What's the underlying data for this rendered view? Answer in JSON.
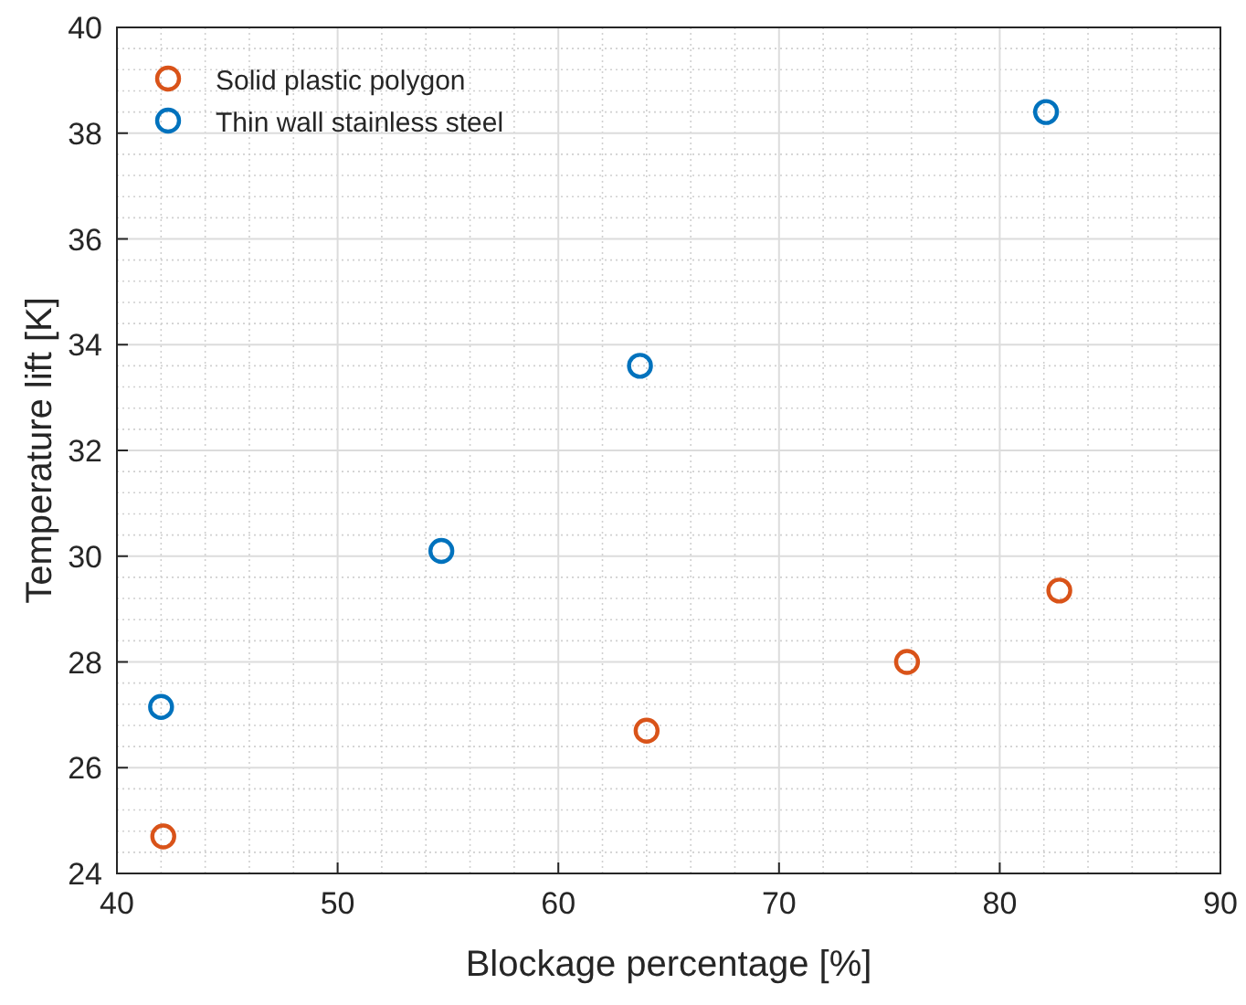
{
  "chart_data": {
    "type": "scatter",
    "xlabel": "Blockage percentage [%]",
    "ylabel": "Temperature lift [K]",
    "xlim": [
      40,
      90
    ],
    "xticks": [
      40,
      50,
      60,
      70,
      80,
      90
    ],
    "ylim": [
      24,
      40
    ],
    "yticks": [
      24,
      26,
      28,
      30,
      32,
      34,
      36,
      38,
      40
    ],
    "grid": true,
    "legend": "top left",
    "marker": "circle",
    "series": [
      {
        "name": "Solid plastic polygon",
        "color": "#d95319",
        "x": [
          42.1,
          64.0,
          75.8,
          82.7
        ],
        "values": [
          24.7,
          26.7,
          28.0,
          29.35
        ]
      },
      {
        "name": "Thin wall stainless steel",
        "color": "#0072bd",
        "x": [
          42.0,
          54.7,
          63.7,
          82.1
        ],
        "values": [
          27.15,
          30.1,
          33.6,
          38.4
        ]
      }
    ]
  }
}
